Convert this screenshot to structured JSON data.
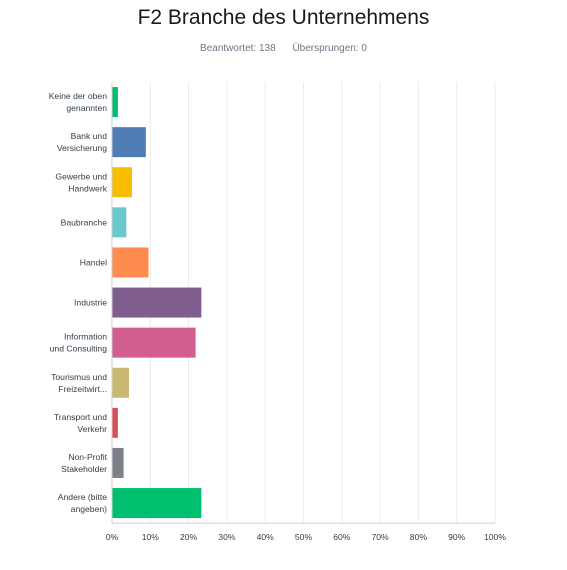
{
  "header": {
    "title": "F2 Branche des Unternehmens",
    "answered": "Beantwortet: 138",
    "skipped": "Übersprungen: 0"
  },
  "chart_data": {
    "type": "bar",
    "orientation": "horizontal",
    "title": "F2 Branche des Unternehmens",
    "xlabel": "",
    "ylabel": "",
    "xlim": [
      0,
      100
    ],
    "grid": true,
    "categories": [
      [
        "Keine der oben",
        "genannten"
      ],
      [
        "Bank und",
        "Versicherung"
      ],
      [
        "Gewerbe und",
        "Handwerk"
      ],
      [
        "Baubranche"
      ],
      [
        "Handel"
      ],
      [
        "Industrie"
      ],
      [
        "Information",
        "und Consulting"
      ],
      [
        "Tourismus und",
        "Freizeitwirt..."
      ],
      [
        "Transport und",
        "Verkehr"
      ],
      [
        "Non-Profit",
        "Stakeholder"
      ],
      [
        "Andere (bitte",
        "angeben)"
      ]
    ],
    "values": [
      1.4,
      8.7,
      5.1,
      3.6,
      9.4,
      23.2,
      21.7,
      4.3,
      1.4,
      2.9,
      23.2
    ],
    "colors": [
      "#00bf6f",
      "#507cb6",
      "#f9be00",
      "#6bc8cd",
      "#ff8b4f",
      "#7f5e8f",
      "#d25f90",
      "#c9b772",
      "#d9505b",
      "#7a8189",
      "#00bf6f"
    ],
    "ticks": [
      "0%",
      "10%",
      "20%",
      "30%",
      "40%",
      "50%",
      "60%",
      "70%",
      "80%",
      "90%",
      "100%"
    ]
  }
}
